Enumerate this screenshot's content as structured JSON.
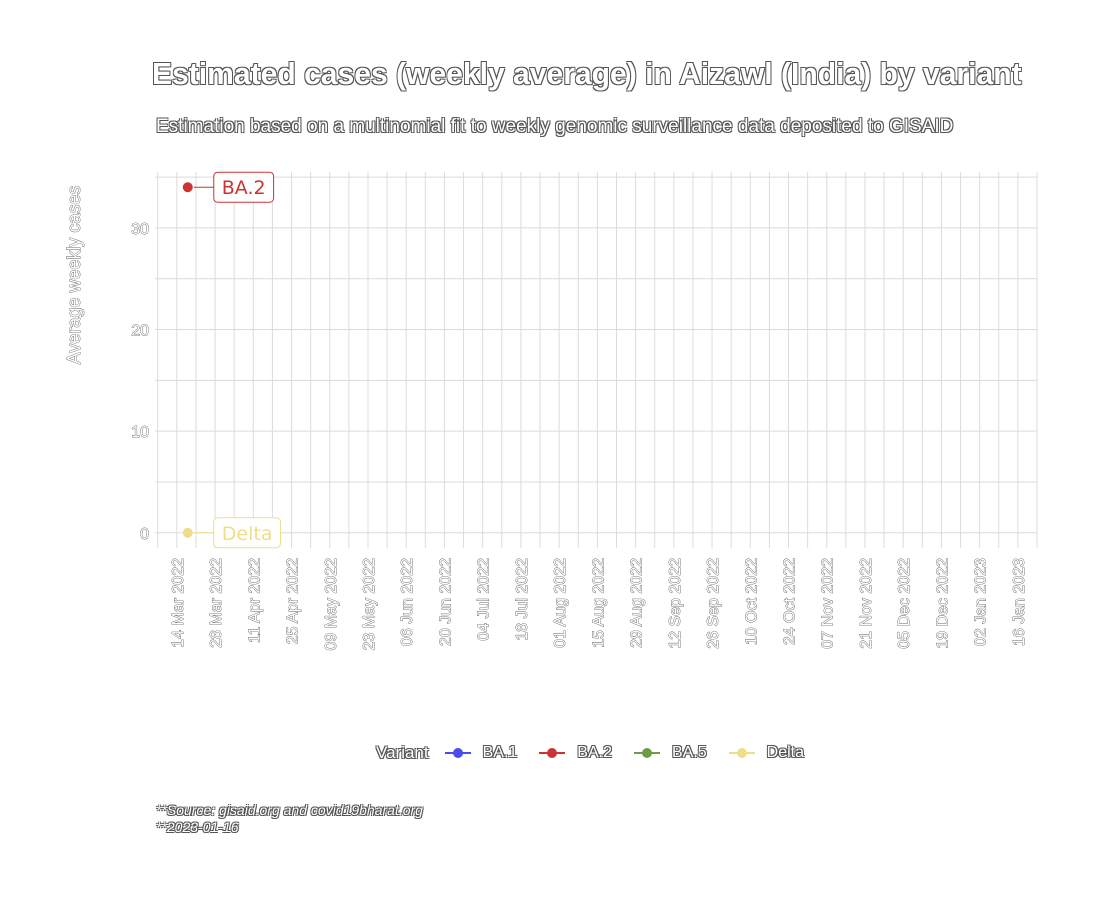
{
  "title": "Estimated cases (weekly average) in Aizawl (India) by variant",
  "subtitle": "Estimation based on a multinomial fit to weekly genomic surveillance data deposited to GISAID",
  "caption": [
    "**Source: gisaid.org and covid19bharat.org",
    "**2023-01-16"
  ],
  "legend": {
    "title": "Variant",
    "items": [
      {
        "label": "BA.1",
        "color": "#4b4bf0"
      },
      {
        "label": "BA.2",
        "color": "#cc3333"
      },
      {
        "label": "BA.5",
        "color": "#6e9a4a"
      },
      {
        "label": "Delta",
        "color": "#eede8a"
      }
    ]
  },
  "chart_data": {
    "type": "scatter",
    "title": "Estimated cases (weekly average) in Aizawl (India) by variant",
    "subtitle": "Estimation based on a multinomial fit to weekly genomic surveillance data deposited to GISAID",
    "xlabel": "",
    "ylabel": "Average weekly cases",
    "x_ticks": [
      "14 Mar 2022",
      "28 Mar 2022",
      "11 Apr 2022",
      "25 Apr 2022",
      "09 May 2022",
      "23 May 2022",
      "06 Jun 2022",
      "20 Jun 2022",
      "04 Jul 2022",
      "18 Jul 2022",
      "01 Aug 2022",
      "15 Aug 2022",
      "29 Aug 2022",
      "12 Sep 2022",
      "26 Sep 2022",
      "10 Oct 2022",
      "24 Oct 2022",
      "07 Nov 2022",
      "21 Nov 2022",
      "05 Dec 2022",
      "19 Dec 2022",
      "02 Jan 2023",
      "16 Jan 2023"
    ],
    "y_ticks": [
      0,
      10,
      20,
      30
    ],
    "xlim": [
      "2022-03-06",
      "2023-01-23"
    ],
    "ylim": [
      -1.5,
      35.5
    ],
    "grid": true,
    "legend_position": "bottom",
    "series": [
      {
        "name": "BA.2",
        "color": "#cc3333",
        "points": [
          {
            "x": "2022-03-18",
            "y": 34
          }
        ],
        "end_label": "BA.2"
      },
      {
        "name": "Delta",
        "color": "#eede8a",
        "points": [
          {
            "x": "2022-03-18",
            "y": 0
          }
        ],
        "end_label": "Delta"
      }
    ]
  }
}
